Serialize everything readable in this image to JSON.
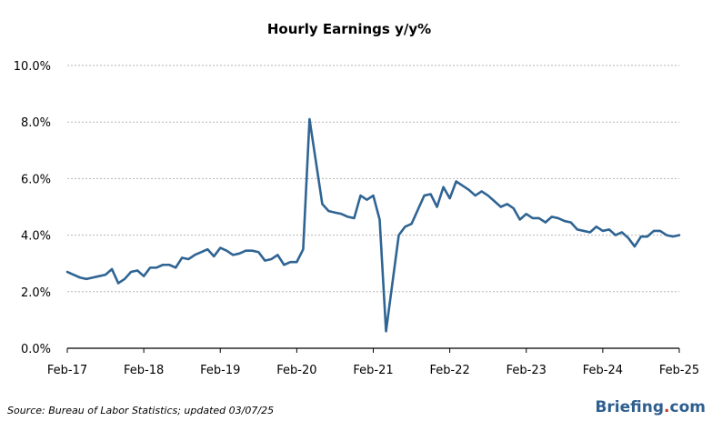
{
  "chart_data": {
    "type": "line",
    "title": "Hourly Earnings y/y%",
    "xlabel": "",
    "ylabel": "",
    "ylim": [
      0,
      10
    ],
    "yticks": [
      "0.0%",
      "2.0%",
      "4.0%",
      "6.0%",
      "8.0%",
      "10.0%"
    ],
    "xticks": [
      "Feb-17",
      "Feb-18",
      "Feb-19",
      "Feb-20",
      "Feb-21",
      "Feb-22",
      "Feb-23",
      "Feb-24",
      "Feb-25"
    ],
    "grid": true,
    "line_color": "#2f6493",
    "x_start": "Feb-17",
    "x_end": "Feb-25",
    "series": [
      {
        "values": [
          2.7,
          2.6,
          2.5,
          2.45,
          2.5,
          2.55,
          2.6,
          2.8,
          2.3,
          2.45,
          2.7,
          2.75,
          2.55,
          2.85,
          2.85,
          2.95,
          2.95,
          2.85,
          3.2,
          3.15,
          3.3,
          3.4,
          3.5,
          3.25,
          3.55,
          3.45,
          3.3,
          3.35,
          3.45,
          3.45,
          3.4,
          3.1,
          3.15,
          3.3,
          2.95,
          3.05,
          3.05,
          3.5,
          8.1,
          6.6,
          5.1,
          4.85,
          4.8,
          4.75,
          4.65,
          4.6,
          5.4,
          5.25,
          5.4,
          4.55,
          0.6,
          2.3,
          4.0,
          4.3,
          4.4,
          4.9,
          5.4,
          5.45,
          5.0,
          5.7,
          5.3,
          5.9,
          5.75,
          5.6,
          5.4,
          5.55,
          5.4,
          5.2,
          5.0,
          5.1,
          4.95,
          4.55,
          4.75,
          4.6,
          4.6,
          4.45,
          4.65,
          4.6,
          4.5,
          4.45,
          4.2,
          4.15,
          4.1,
          4.3,
          4.15,
          4.2,
          4.0,
          4.1,
          3.9,
          3.6,
          3.95,
          3.95,
          4.15,
          4.15,
          4.0,
          3.95,
          4.0
        ]
      }
    ]
  },
  "footer": {
    "source": "Source: Bureau of Labor Statistics; updated 03/07/25",
    "brand_main": "Briefing",
    "brand_dot": ".",
    "brand_tld": "com"
  },
  "colors": {
    "line": "#2f6493",
    "grid": "#b5b5b5",
    "axis": "#000000",
    "brand": "#2f5f8f",
    "brand_dot": "#c0392b"
  }
}
